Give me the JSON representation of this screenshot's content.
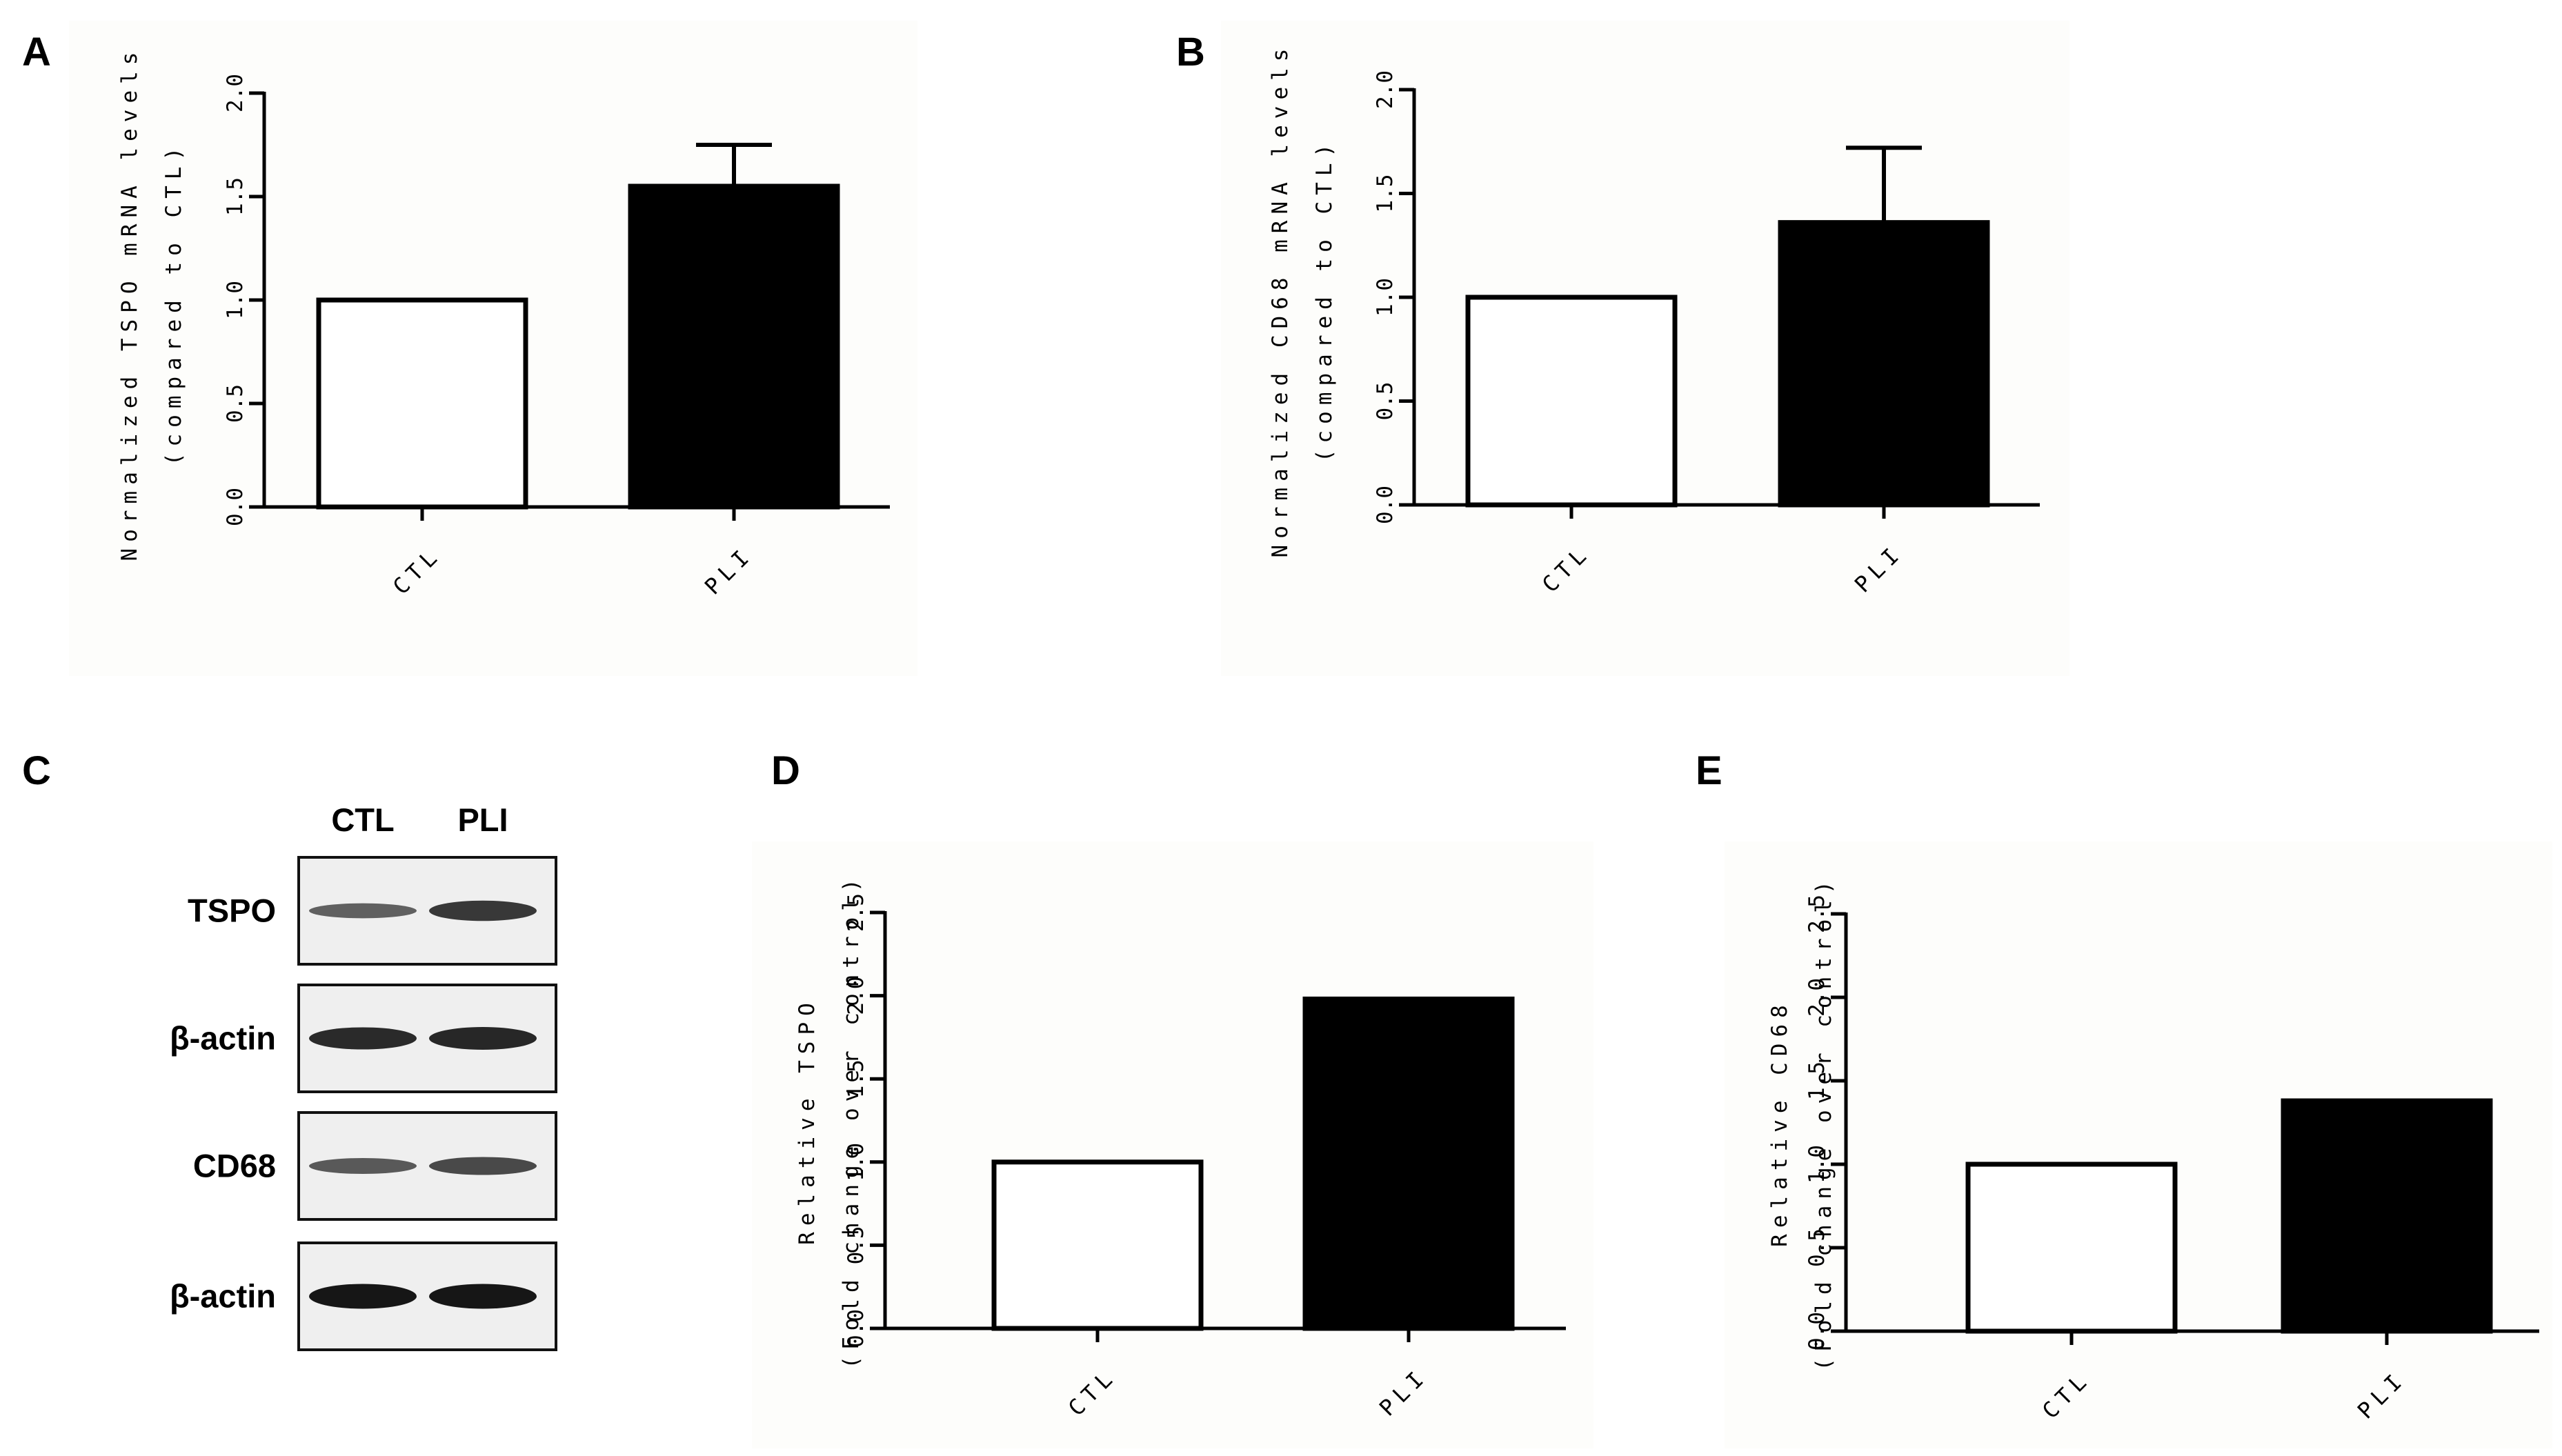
{
  "panels": {
    "A": "A",
    "B": "B",
    "C": "C",
    "D": "D",
    "E": "E"
  },
  "blot": {
    "lanes": [
      "CTL",
      "PLI"
    ],
    "rows": [
      {
        "label": "TSPO",
        "intensity": [
          0.45,
          0.75
        ]
      },
      {
        "label": "β-actin",
        "intensity": [
          0.85,
          0.88
        ]
      },
      {
        "label": "CD68",
        "intensity": [
          0.5,
          0.62
        ]
      },
      {
        "label": "β-actin",
        "intensity": [
          1.0,
          1.0
        ]
      }
    ]
  },
  "chart_data": [
    {
      "id": "A",
      "type": "bar",
      "categories": [
        "CTL",
        "PLI"
      ],
      "values": [
        1.0,
        1.55
      ],
      "errors": [
        0,
        0.2
      ],
      "bar_colors": [
        "#ffffff",
        "#000000"
      ],
      "title": "",
      "xlabel": "",
      "ylabel_lines": [
        "Normalized TSPO mRNA levels",
        "(compared to CTL)"
      ],
      "ylim": [
        0,
        2.0
      ],
      "yticks": [
        "0.0",
        "0.5",
        "1.0",
        "1.5",
        "2.0"
      ]
    },
    {
      "id": "B",
      "type": "bar",
      "categories": [
        "CTL",
        "PLI"
      ],
      "values": [
        1.0,
        1.36
      ],
      "errors": [
        0,
        0.36
      ],
      "bar_colors": [
        "#ffffff",
        "#000000"
      ],
      "title": "",
      "xlabel": "",
      "ylabel_lines": [
        "Normalized CD68 mRNA levels",
        "(compared to CTL)"
      ],
      "ylim": [
        0,
        2.0
      ],
      "yticks": [
        "0.0",
        "0.5",
        "1.0",
        "1.5",
        "2.0"
      ]
    },
    {
      "id": "D",
      "type": "bar",
      "categories": [
        "CTL",
        "PLI"
      ],
      "values": [
        1.0,
        1.98
      ],
      "errors": [
        0,
        0
      ],
      "bar_colors": [
        "#ffffff",
        "#000000"
      ],
      "title": "",
      "xlabel": "",
      "ylabel_lines": [
        "Relative TSPO",
        "(Fold change over control)"
      ],
      "ylim": [
        0,
        2.5
      ],
      "yticks": [
        "0.0",
        "0.5",
        "1.0",
        "1.5",
        "2.0",
        "2.5"
      ]
    },
    {
      "id": "E",
      "type": "bar",
      "categories": [
        "CTL",
        "PLI"
      ],
      "values": [
        1.0,
        1.38
      ],
      "errors": [
        0,
        0
      ],
      "bar_colors": [
        "#ffffff",
        "#000000"
      ],
      "title": "",
      "xlabel": "",
      "ylabel_lines": [
        "Relative CD68",
        "(Fold change over control)"
      ],
      "ylim": [
        0,
        2.5
      ],
      "yticks": [
        "0.0",
        "0.5",
        "1.0",
        "1.5",
        "2.0",
        "2.5"
      ]
    }
  ]
}
